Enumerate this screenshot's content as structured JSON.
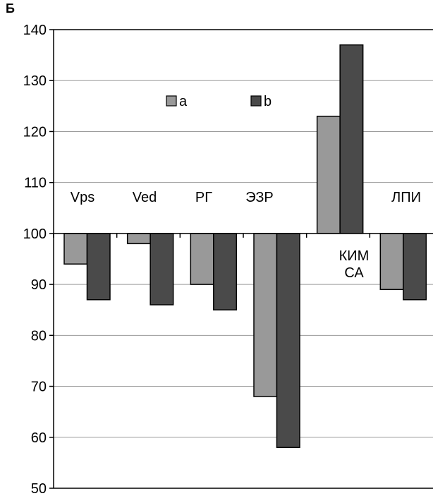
{
  "panel_label": "Б",
  "chart_data": {
    "type": "bar",
    "title": "",
    "xlabel": "",
    "ylabel": "",
    "ylim": [
      50,
      140
    ],
    "yticks": [
      50,
      60,
      70,
      80,
      90,
      100,
      110,
      120,
      130,
      140
    ],
    "baseline": 100,
    "grid": true,
    "legend_placement": "top-center",
    "categories": [
      "Vps",
      "Ved",
      "РГ",
      "ЭЗР",
      "КИМ СА",
      "ЛПИ"
    ],
    "series": [
      {
        "name": "a",
        "color": "#999999",
        "values": [
          94,
          98,
          90,
          68,
          123,
          89
        ]
      },
      {
        "name": "b",
        "color": "#4a4a4a",
        "values": [
          87,
          86,
          85,
          58,
          137,
          87
        ]
      }
    ]
  }
}
